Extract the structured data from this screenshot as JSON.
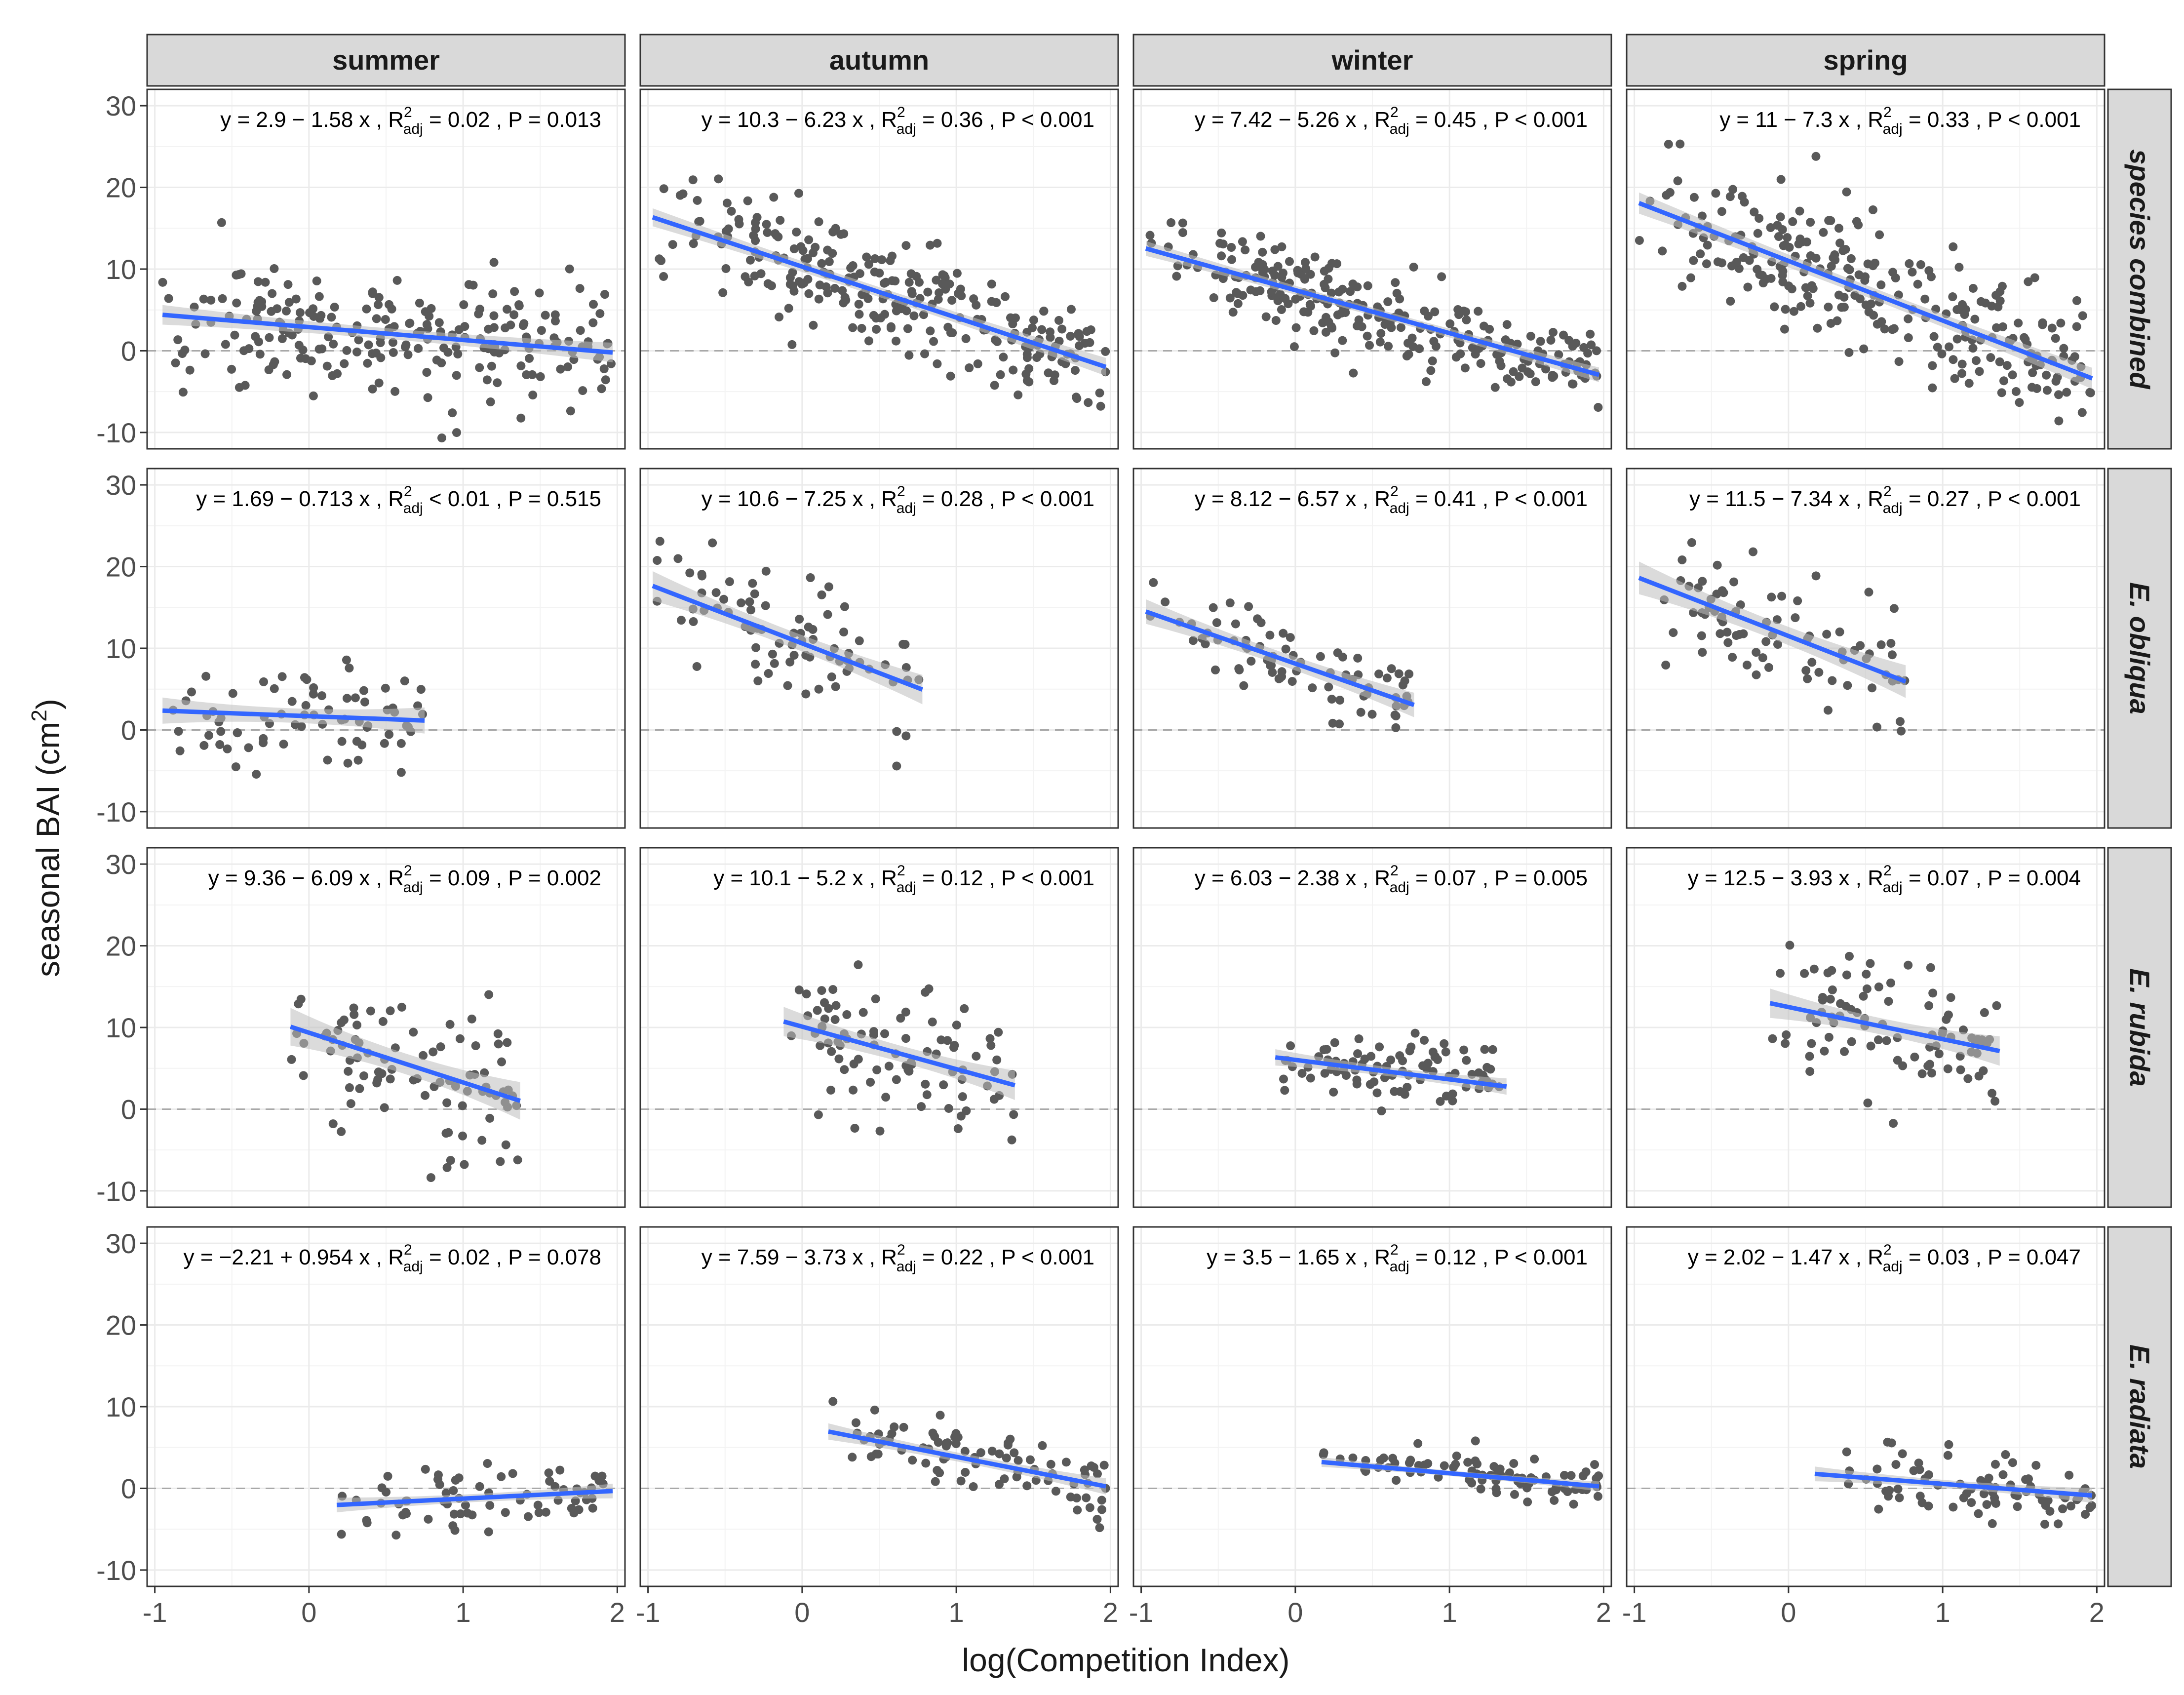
{
  "chart_data": {
    "type": "scatter",
    "title": "",
    "xlabel": "log(Competition Index)",
    "ylabel_main": "seasonal BAI (cm",
    "ylabel_sup": "2",
    "ylabel_tail": ")",
    "xlim": [
      -1.05,
      2.05
    ],
    "ylim": [
      -12,
      32
    ],
    "xticks": [
      -1,
      0,
      1,
      2
    ],
    "yticks": [
      -10,
      0,
      10,
      20,
      30
    ],
    "xtick_labels": [
      "-1",
      "0",
      "1",
      "2"
    ],
    "ytick_labels": [
      "-10",
      "0",
      "10",
      "20",
      "30"
    ],
    "grid": true,
    "reference_line_y": 0,
    "colors": {
      "point": "#595959",
      "fit_line": "#3366FF",
      "ribbon": "#bdbdbd",
      "strip_fill": "#d9d9d9",
      "panel_border": "#333333",
      "grid": "#ebebeb",
      "zero_line": "#a8a8a8"
    },
    "columns": [
      "summer",
      "autumn",
      "winter",
      "spring"
    ],
    "rows": [
      "species combined",
      "E. obliqua",
      "E. rubida",
      "E. radiata"
    ],
    "panels": [
      {
        "row": 0,
        "col": 0,
        "eq_y": "y = 2.9 − 1.58 x , R",
        "eq_stats": " = 0.02 , P = 0.013",
        "intercept": 2.9,
        "slope": -1.58,
        "xrange": [
          -0.95,
          1.97
        ],
        "band": 1.2,
        "seed": 11,
        "n": 230,
        "ymean_shift": 0,
        "spread": 5.0
      },
      {
        "row": 0,
        "col": 1,
        "eq_y": "y = 10.3 − 6.23 x , R",
        "eq_stats": " = 0.36 , P < 0.001",
        "intercept": 10.3,
        "slope": -6.23,
        "xrange": [
          -0.97,
          1.97
        ],
        "band": 1.1,
        "seed": 12,
        "n": 260,
        "ymean_shift": 0,
        "spread": 4.2
      },
      {
        "row": 0,
        "col": 2,
        "eq_y": "y = 7.42 − 5.26 x , R",
        "eq_stats": " = 0.45 , P < 0.001",
        "intercept": 7.42,
        "slope": -5.26,
        "xrange": [
          -0.97,
          1.97
        ],
        "band": 0.9,
        "seed": 13,
        "n": 260,
        "ymean_shift": 0,
        "spread": 3.0
      },
      {
        "row": 0,
        "col": 3,
        "eq_y": "y = 11 − 7.3 x , R",
        "eq_stats": " = 0.33 , P < 0.001",
        "intercept": 11,
        "slope": -7.3,
        "xrange": [
          -0.97,
          1.97
        ],
        "band": 1.3,
        "seed": 14,
        "n": 260,
        "ymean_shift": 0,
        "spread": 5.0
      },
      {
        "row": 1,
        "col": 0,
        "eq_y": "y = 1.69 − 0.713 x , R",
        "eq_stats": " < 0.01 , P = 0.515",
        "intercept": 1.69,
        "slope": -0.713,
        "xrange": [
          -0.95,
          0.75
        ],
        "band": 1.6,
        "seed": 21,
        "n": 75,
        "ymean_shift": 0,
        "spread": 4.5
      },
      {
        "row": 1,
        "col": 1,
        "eq_y": "y = 10.6 − 7.25 x , R",
        "eq_stats": " = 0.28 , P < 0.001",
        "intercept": 10.6,
        "slope": -7.25,
        "xrange": [
          -0.97,
          0.78
        ],
        "band": 1.8,
        "seed": 22,
        "n": 80,
        "ymean_shift": 0,
        "spread": 4.5
      },
      {
        "row": 1,
        "col": 2,
        "eq_y": "y = 8.12 − 6.57 x , R",
        "eq_stats": " = 0.41 , P < 0.001",
        "intercept": 8.12,
        "slope": -6.57,
        "xrange": [
          -0.97,
          0.77
        ],
        "band": 1.5,
        "seed": 23,
        "n": 80,
        "ymean_shift": 0,
        "spread": 3.2
      },
      {
        "row": 1,
        "col": 3,
        "eq_y": "y = 11.5 − 7.34 x , R",
        "eq_stats": " = 0.27 , P < 0.001",
        "intercept": 11.5,
        "slope": -7.34,
        "xrange": [
          -0.97,
          0.76
        ],
        "band": 2.0,
        "seed": 24,
        "n": 80,
        "ymean_shift": 0,
        "spread": 5.5
      },
      {
        "row": 2,
        "col": 0,
        "eq_y": "y = 9.36 − 6.09 x , R",
        "eq_stats": " = 0.09 , P = 0.002",
        "intercept": 9.36,
        "slope": -6.09,
        "xrange": [
          -0.12,
          1.37
        ],
        "band": 2.3,
        "seed": 31,
        "n": 90,
        "ymean_shift": 0,
        "spread": 6.0
      },
      {
        "row": 2,
        "col": 1,
        "eq_y": "y = 10.1 − 5.2 x , R",
        "eq_stats": " = 0.12 , P < 0.001",
        "intercept": 10.1,
        "slope": -5.2,
        "xrange": [
          -0.12,
          1.38
        ],
        "band": 1.8,
        "seed": 32,
        "n": 90,
        "ymean_shift": 0,
        "spread": 4.5
      },
      {
        "row": 2,
        "col": 2,
        "eq_y": "y = 6.03 − 2.38 x , R",
        "eq_stats": " = 0.07 , P = 0.005",
        "intercept": 6.03,
        "slope": -2.38,
        "xrange": [
          -0.13,
          1.37
        ],
        "band": 1.0,
        "seed": 33,
        "n": 90,
        "ymean_shift": 0,
        "spread": 2.8
      },
      {
        "row": 2,
        "col": 3,
        "eq_y": "y = 12.5 − 3.93 x , R",
        "eq_stats": " = 0.07 , P = 0.004",
        "intercept": 12.5,
        "slope": -3.93,
        "xrange": [
          -0.12,
          1.37
        ],
        "band": 1.8,
        "seed": 34,
        "n": 90,
        "ymean_shift": 0,
        "spread": 5.0
      },
      {
        "row": 3,
        "col": 0,
        "eq_y": "y = −2.21 + 0.954 x , R",
        "eq_stats": " = 0.02 , P = 0.078",
        "intercept": -2.21,
        "slope": 0.954,
        "xrange": [
          0.18,
          1.97
        ],
        "band": 0.9,
        "seed": 41,
        "n": 70,
        "ymean_shift": 0,
        "spread": 2.5
      },
      {
        "row": 3,
        "col": 1,
        "eq_y": "y = 7.59 − 3.73 x , R",
        "eq_stats": " = 0.22 , P < 0.001",
        "intercept": 7.59,
        "slope": -3.73,
        "xrange": [
          0.17,
          1.97
        ],
        "band": 1.0,
        "seed": 42,
        "n": 85,
        "ymean_shift": 0,
        "spread": 2.7
      },
      {
        "row": 3,
        "col": 2,
        "eq_y": "y = 3.5 − 1.65 x , R",
        "eq_stats": " = 0.12 , P < 0.001",
        "intercept": 3.5,
        "slope": -1.65,
        "xrange": [
          0.17,
          1.97
        ],
        "band": 0.6,
        "seed": 43,
        "n": 85,
        "ymean_shift": 0,
        "spread": 1.6
      },
      {
        "row": 3,
        "col": 3,
        "eq_y": "y = 2.02 − 1.47 x , R",
        "eq_stats": " = 0.03 , P = 0.047",
        "intercept": 2.02,
        "slope": -1.47,
        "xrange": [
          0.17,
          1.97
        ],
        "band": 0.9,
        "seed": 44,
        "n": 80,
        "ymean_shift": 0,
        "spread": 2.5
      }
    ],
    "eq_r_sub": "adj",
    "eq_r_sup": "2"
  }
}
